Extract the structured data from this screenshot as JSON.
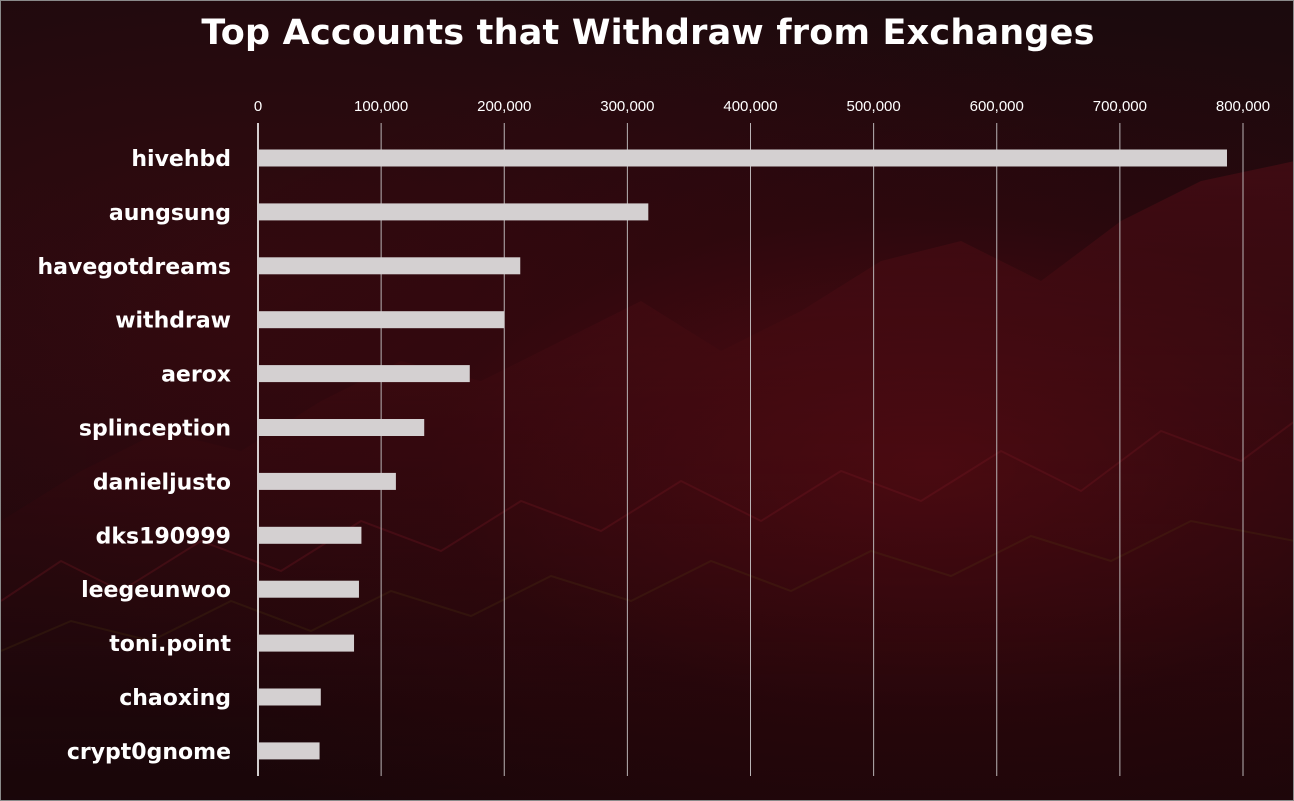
{
  "chart_data": {
    "type": "bar",
    "orientation": "horizontal",
    "title": "Top Accounts that Withdraw from Exchanges",
    "categories": [
      "hivehbd",
      "aungsung",
      "havegotdreams",
      "withdraw",
      "aerox",
      "splinception",
      "danieljusto",
      "dks190999",
      "leegeunwoo",
      "toni.point",
      "chaoxing",
      "crypt0gnome"
    ],
    "values": [
      787000,
      317000,
      213000,
      200000,
      172000,
      135000,
      112000,
      84000,
      82000,
      78000,
      51000,
      50000
    ],
    "xlim": [
      0,
      800000
    ],
    "x_ticks": [
      0,
      100000,
      200000,
      300000,
      400000,
      500000,
      600000,
      700000,
      800000
    ],
    "x_tick_labels": [
      "0",
      "100,000",
      "200,000",
      "300,000",
      "400,000",
      "500,000",
      "600,000",
      "700,000",
      "800,000"
    ],
    "x_axis_position": "top",
    "grid": true,
    "legend": "none",
    "bar_color": "#d4d0d1",
    "grid_color": "#b9b3b5",
    "background_color": "#1e0a0d"
  }
}
